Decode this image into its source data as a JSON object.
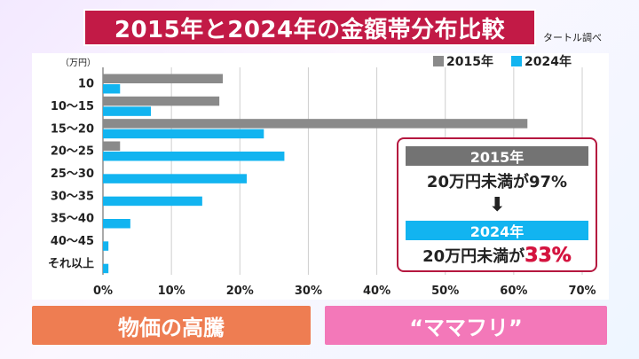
{
  "title": "2015年と2024年の金額帯分布比較",
  "source": "タートル調べ",
  "unit_label": "（万円）",
  "colors": {
    "series_2015": "#8a8a8a",
    "series_2024": "#12b4f0",
    "accent": "#c21a46"
  },
  "chart_data": {
    "type": "bar",
    "orientation": "horizontal",
    "title": "2015年と2024年の金額帯分布比較",
    "ylabel": "（万円）",
    "categories": [
      "10",
      "10～15",
      "15～20",
      "20～25",
      "25～30",
      "30～35",
      "35～40",
      "40～45",
      "それ以上"
    ],
    "series": [
      {
        "name": "2015年",
        "values": [
          17.5,
          17,
          62,
          2.5,
          0,
          0,
          0,
          0,
          0
        ]
      },
      {
        "name": "2024年",
        "values": [
          2.5,
          7,
          23.5,
          26.5,
          21,
          14.5,
          4,
          0.8,
          0.8
        ]
      }
    ],
    "xlim": [
      0,
      70
    ],
    "xticks": [
      "0%",
      "10%",
      "20%",
      "30%",
      "40%",
      "50%",
      "60%",
      "70%"
    ],
    "grid": true,
    "legend": "top-right"
  },
  "summary": {
    "year1": "2015年",
    "line1": "20万円未満が97%",
    "arrow": "⬇",
    "year2": "2024年",
    "line2_prefix": "20万円未満が",
    "line2_value": "33%"
  },
  "buttons": {
    "left": "物価の高騰",
    "right": "“ママフリ”"
  }
}
